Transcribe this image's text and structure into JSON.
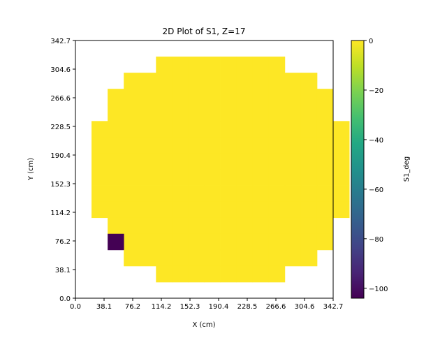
{
  "chart_data": {
    "type": "heatmap",
    "title": "2D Plot of S1, Z=17",
    "xlabel": "X (cm)",
    "ylabel": "Y (cm)",
    "xlim": [
      0.0,
      342.7
    ],
    "ylim": [
      0.0,
      342.7
    ],
    "x_ticks": [
      "0.0",
      "38.1",
      "76.2",
      "114.2",
      "152.3",
      "190.4",
      "228.5",
      "266.6",
      "304.6",
      "342.7"
    ],
    "y_ticks": [
      "0.0",
      "38.1",
      "76.2",
      "114.2",
      "152.3",
      "190.4",
      "228.5",
      "266.6",
      "304.6",
      "342.7"
    ],
    "grid_cells": 16,
    "colormap": "viridis",
    "colorbar": {
      "label": "S1_deg",
      "range": [
        -104,
        0
      ],
      "ticks": [
        "0",
        "−20",
        "−40",
        "−60",
        "−80",
        "−100"
      ]
    },
    "rows": [
      {
        "row": 14,
        "cols": [
          5,
          6,
          7,
          8,
          9,
          10,
          11,
          12
        ],
        "value": 0
      },
      {
        "row": 13,
        "cols": [
          3,
          4,
          5,
          6,
          7,
          8,
          9,
          10,
          11,
          12,
          13,
          14
        ],
        "value": 0
      },
      {
        "row": 12,
        "cols": [
          2,
          3,
          4,
          5,
          6,
          7,
          8,
          9,
          10,
          11,
          12,
          13,
          14,
          15
        ],
        "value": 0
      },
      {
        "row": 11,
        "cols": [
          2,
          3,
          4,
          5,
          6,
          7,
          8,
          9,
          10,
          11,
          12,
          13,
          14,
          15
        ],
        "value": 0
      },
      {
        "row": 10,
        "cols": [
          1,
          2,
          3,
          4,
          5,
          6,
          7,
          8,
          9,
          10,
          11,
          12,
          13,
          14,
          15,
          16
        ],
        "value": 0
      },
      {
        "row": 9,
        "cols": [
          1,
          2,
          3,
          4,
          5,
          6,
          7,
          8,
          9,
          10,
          11,
          12,
          13,
          14,
          15,
          16
        ],
        "value": 0
      },
      {
        "row": 8,
        "cols": [
          1,
          2,
          3,
          4,
          5,
          6,
          7,
          8,
          9,
          10,
          11,
          12,
          13,
          14,
          15,
          16
        ],
        "value": 0
      },
      {
        "row": 7,
        "cols": [
          1,
          2,
          3,
          4,
          5,
          6,
          7,
          8,
          9,
          10,
          11,
          12,
          13,
          14,
          15,
          16
        ],
        "value": 0
      },
      {
        "row": 6,
        "cols": [
          1,
          2,
          3,
          4,
          5,
          6,
          7,
          8,
          9,
          10,
          11,
          12,
          13,
          14,
          15,
          16
        ],
        "value": 0
      },
      {
        "row": 5,
        "cols": [
          1,
          2,
          3,
          4,
          5,
          6,
          7,
          8,
          9,
          10,
          11,
          12,
          13,
          14,
          15,
          16
        ],
        "value": 0
      },
      {
        "row": 4,
        "cols": [
          2,
          3,
          4,
          5,
          6,
          7,
          8,
          9,
          10,
          11,
          12,
          13,
          14,
          15
        ],
        "value": 0
      },
      {
        "row": 3,
        "cols": [
          3,
          4,
          5,
          6,
          7,
          8,
          9,
          10,
          11,
          12,
          13,
          14,
          15
        ],
        "value": 0
      },
      {
        "row": 3,
        "cols": [
          2
        ],
        "value": -104
      },
      {
        "row": 2,
        "cols": [
          3,
          4,
          5,
          6,
          7,
          8,
          9,
          10,
          11,
          12,
          13,
          14
        ],
        "value": 0
      },
      {
        "row": 1,
        "cols": [
          5,
          6,
          7,
          8,
          9,
          10,
          11,
          12
        ],
        "value": 0
      }
    ]
  }
}
